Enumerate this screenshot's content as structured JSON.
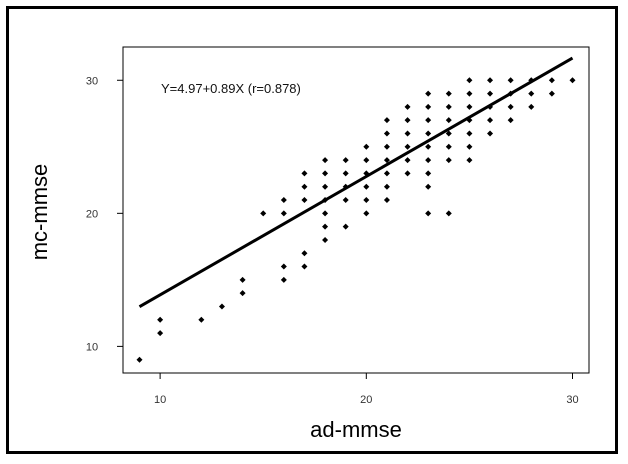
{
  "chart_data": {
    "type": "scatter",
    "title": "",
    "xlabel": "ad-mmse",
    "ylabel": "mc-mmse",
    "xlim": [
      8.2,
      30.8
    ],
    "ylim": [
      8.0,
      32.5
    ],
    "xticks": [
      10,
      20,
      30
    ],
    "yticks": [
      10,
      20,
      30
    ],
    "grid": false,
    "annotation": "Y=4.97+0.89X (r=0.878)",
    "regression": {
      "intercept": 4.97,
      "slope": 0.89,
      "r": 0.878,
      "x_range": [
        9,
        30
      ]
    },
    "points": [
      {
        "x": 9,
        "y": 9
      },
      {
        "x": 10,
        "y": 11
      },
      {
        "x": 10,
        "y": 12
      },
      {
        "x": 12,
        "y": 12
      },
      {
        "x": 13,
        "y": 13
      },
      {
        "x": 14,
        "y": 14
      },
      {
        "x": 14,
        "y": 15
      },
      {
        "x": 15,
        "y": 20
      },
      {
        "x": 16,
        "y": 15
      },
      {
        "x": 16,
        "y": 16
      },
      {
        "x": 16,
        "y": 20
      },
      {
        "x": 16,
        "y": 21
      },
      {
        "x": 17,
        "y": 16
      },
      {
        "x": 17,
        "y": 17
      },
      {
        "x": 17,
        "y": 21
      },
      {
        "x": 17,
        "y": 22
      },
      {
        "x": 17,
        "y": 23
      },
      {
        "x": 18,
        "y": 18
      },
      {
        "x": 18,
        "y": 19
      },
      {
        "x": 18,
        "y": 20
      },
      {
        "x": 18,
        "y": 21
      },
      {
        "x": 18,
        "y": 22
      },
      {
        "x": 18,
        "y": 23
      },
      {
        "x": 18,
        "y": 24
      },
      {
        "x": 19,
        "y": 19
      },
      {
        "x": 19,
        "y": 21
      },
      {
        "x": 19,
        "y": 22
      },
      {
        "x": 19,
        "y": 23
      },
      {
        "x": 19,
        "y": 24
      },
      {
        "x": 20,
        "y": 20
      },
      {
        "x": 20,
        "y": 21
      },
      {
        "x": 20,
        "y": 22
      },
      {
        "x": 20,
        "y": 23
      },
      {
        "x": 20,
        "y": 24
      },
      {
        "x": 20,
        "y": 25
      },
      {
        "x": 21,
        "y": 21
      },
      {
        "x": 21,
        "y": 22
      },
      {
        "x": 21,
        "y": 23
      },
      {
        "x": 21,
        "y": 24
      },
      {
        "x": 21,
        "y": 25
      },
      {
        "x": 21,
        "y": 26
      },
      {
        "x": 21,
        "y": 27
      },
      {
        "x": 22,
        "y": 23
      },
      {
        "x": 22,
        "y": 24
      },
      {
        "x": 22,
        "y": 25
      },
      {
        "x": 22,
        "y": 26
      },
      {
        "x": 22,
        "y": 27
      },
      {
        "x": 22,
        "y": 28
      },
      {
        "x": 23,
        "y": 20
      },
      {
        "x": 23,
        "y": 22
      },
      {
        "x": 23,
        "y": 23
      },
      {
        "x": 23,
        "y": 24
      },
      {
        "x": 23,
        "y": 25
      },
      {
        "x": 23,
        "y": 26
      },
      {
        "x": 23,
        "y": 27
      },
      {
        "x": 23,
        "y": 28
      },
      {
        "x": 23,
        "y": 29
      },
      {
        "x": 24,
        "y": 20
      },
      {
        "x": 24,
        "y": 24
      },
      {
        "x": 24,
        "y": 25
      },
      {
        "x": 24,
        "y": 26
      },
      {
        "x": 24,
        "y": 27
      },
      {
        "x": 24,
        "y": 28
      },
      {
        "x": 24,
        "y": 29
      },
      {
        "x": 25,
        "y": 24
      },
      {
        "x": 25,
        "y": 25
      },
      {
        "x": 25,
        "y": 26
      },
      {
        "x": 25,
        "y": 27
      },
      {
        "x": 25,
        "y": 28
      },
      {
        "x": 25,
        "y": 29
      },
      {
        "x": 25,
        "y": 30
      },
      {
        "x": 26,
        "y": 26
      },
      {
        "x": 26,
        "y": 27
      },
      {
        "x": 26,
        "y": 28
      },
      {
        "x": 26,
        "y": 29
      },
      {
        "x": 26,
        "y": 30
      },
      {
        "x": 27,
        "y": 27
      },
      {
        "x": 27,
        "y": 28
      },
      {
        "x": 27,
        "y": 29
      },
      {
        "x": 27,
        "y": 30
      },
      {
        "x": 28,
        "y": 28
      },
      {
        "x": 28,
        "y": 29
      },
      {
        "x": 28,
        "y": 30
      },
      {
        "x": 29,
        "y": 29
      },
      {
        "x": 29,
        "y": 30
      },
      {
        "x": 30,
        "y": 30
      }
    ]
  }
}
